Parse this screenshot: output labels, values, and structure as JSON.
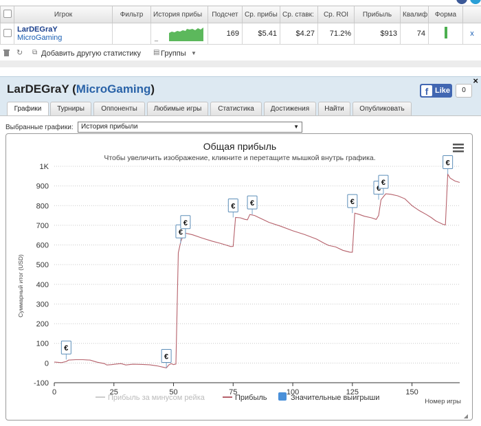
{
  "stats_table": {
    "headers": [
      "Игрок",
      "Фильтр",
      "История прибы",
      "Подсчет",
      "Ср. прибы",
      "Ср. ставк:",
      "Ср. ROI",
      "Прибыль",
      "Квалиф",
      "Форма"
    ],
    "row": {
      "player": "LarDEGraY",
      "network": "MicroGaming",
      "filter": "",
      "history_marker": "_",
      "count": "169",
      "avg_profit": "$5.41",
      "avg_stake": "$4.27",
      "avg_roi": "71.2%",
      "profit": "$913",
      "qualification": "74",
      "remove": "x"
    },
    "toolbar": {
      "add_stats": "Добавить другую статистику",
      "groups": "Группы",
      "delete_icon": "trash-icon",
      "refresh_icon": "refresh-icon"
    }
  },
  "panel": {
    "player": "LarDEGraY",
    "network": "MicroGaming",
    "fb_like": "Like",
    "fb_count": "0",
    "close": "×",
    "tabs": [
      "Графики",
      "Турниры",
      "Оппоненты",
      "Любимые игры",
      "Статистика",
      "Достижения",
      "Найти",
      "Опубликовать"
    ],
    "active_tab": 0,
    "select_label": "Выбранные графики:",
    "select_value": "История прибыли"
  },
  "chart_data": {
    "type": "line",
    "title": "Общая прибыль",
    "subtitle": "Чтобы увеличить изображение, кликните и перетащите мышкой внутрь графика.",
    "ylabel": "Суммарный итог (USD)",
    "xlabel": "Номер игры",
    "xlim": [
      0,
      170
    ],
    "ylim": [
      -100,
      1000
    ],
    "x_ticks": [
      0,
      25,
      50,
      75,
      100,
      125,
      150
    ],
    "y_ticks": [
      -100,
      0,
      100,
      200,
      300,
      400,
      500,
      600,
      700,
      800,
      900,
      1000
    ],
    "y_tick_labels": [
      "-100",
      "0",
      "100",
      "200",
      "300",
      "400",
      "500",
      "600",
      "700",
      "800",
      "900",
      "1K"
    ],
    "legend": [
      "Прибыль за минусом рейка",
      "Прибыль",
      "Значительные выигрыши"
    ],
    "legend_placement": "bottom",
    "grid": true,
    "colors": {
      "profit": "#b5606a",
      "rake": "#cccccc",
      "big_wins": "#4a90d9",
      "axis": "#333333",
      "grid": "#c8c8c8"
    },
    "series": [
      {
        "name": "Прибыль",
        "points": [
          [
            0,
            5
          ],
          [
            3,
            2
          ],
          [
            5,
            8
          ],
          [
            6,
            15
          ],
          [
            9,
            17
          ],
          [
            12,
            17
          ],
          [
            15,
            15
          ],
          [
            18,
            4
          ],
          [
            21,
            -3
          ],
          [
            22,
            -10
          ],
          [
            24,
            -8
          ],
          [
            26,
            -5
          ],
          [
            28,
            -3
          ],
          [
            30,
            -10
          ],
          [
            33,
            -6
          ],
          [
            37,
            -7
          ],
          [
            40,
            -9
          ],
          [
            43,
            -14
          ],
          [
            46,
            -22
          ],
          [
            47,
            -25
          ],
          [
            48,
            -10
          ],
          [
            49,
            -3
          ],
          [
            50,
            -8
          ],
          [
            51,
            -5
          ],
          [
            52,
            560
          ],
          [
            53,
            615
          ],
          [
            54,
            648
          ],
          [
            55,
            660
          ],
          [
            58,
            652
          ],
          [
            62,
            635
          ],
          [
            66,
            620
          ],
          [
            70,
            607
          ],
          [
            74,
            592
          ],
          [
            75,
            593
          ],
          [
            76,
            740
          ],
          [
            78,
            738
          ],
          [
            80,
            730
          ],
          [
            81,
            728
          ],
          [
            82,
            755
          ],
          [
            84,
            750
          ],
          [
            86,
            738
          ],
          [
            90,
            715
          ],
          [
            95,
            695
          ],
          [
            100,
            672
          ],
          [
            105,
            653
          ],
          [
            110,
            630
          ],
          [
            113,
            610
          ],
          [
            115,
            598
          ],
          [
            118,
            590
          ],
          [
            121,
            573
          ],
          [
            124,
            563
          ],
          [
            125,
            563
          ],
          [
            126,
            762
          ],
          [
            128,
            755
          ],
          [
            130,
            746
          ],
          [
            133,
            738
          ],
          [
            135,
            730
          ],
          [
            136,
            750
          ],
          [
            137,
            830
          ],
          [
            138,
            845
          ],
          [
            139,
            860
          ],
          [
            141,
            858
          ],
          [
            144,
            850
          ],
          [
            147,
            835
          ],
          [
            150,
            800
          ],
          [
            153,
            775
          ],
          [
            156,
            755
          ],
          [
            158,
            740
          ],
          [
            160,
            722
          ],
          [
            163,
            705
          ],
          [
            164,
            702
          ],
          [
            165,
            960
          ],
          [
            166,
            940
          ],
          [
            168,
            925
          ],
          [
            170,
            918
          ]
        ]
      }
    ],
    "big_wins": [
      {
        "x": 5,
        "y": 18,
        "label": "€"
      },
      {
        "x": 47,
        "y": -25,
        "label": "€"
      },
      {
        "x": 53,
        "y": 608,
        "label": "€"
      },
      {
        "x": 55,
        "y": 655,
        "label": "€"
      },
      {
        "x": 75,
        "y": 740,
        "label": "€"
      },
      {
        "x": 83,
        "y": 755,
        "label": "€"
      },
      {
        "x": 125,
        "y": 762,
        "label": "€"
      },
      {
        "x": 136,
        "y": 830,
        "label": "€"
      },
      {
        "x": 138,
        "y": 860,
        "label": "€"
      },
      {
        "x": 165,
        "y": 960,
        "label": "€"
      }
    ]
  }
}
